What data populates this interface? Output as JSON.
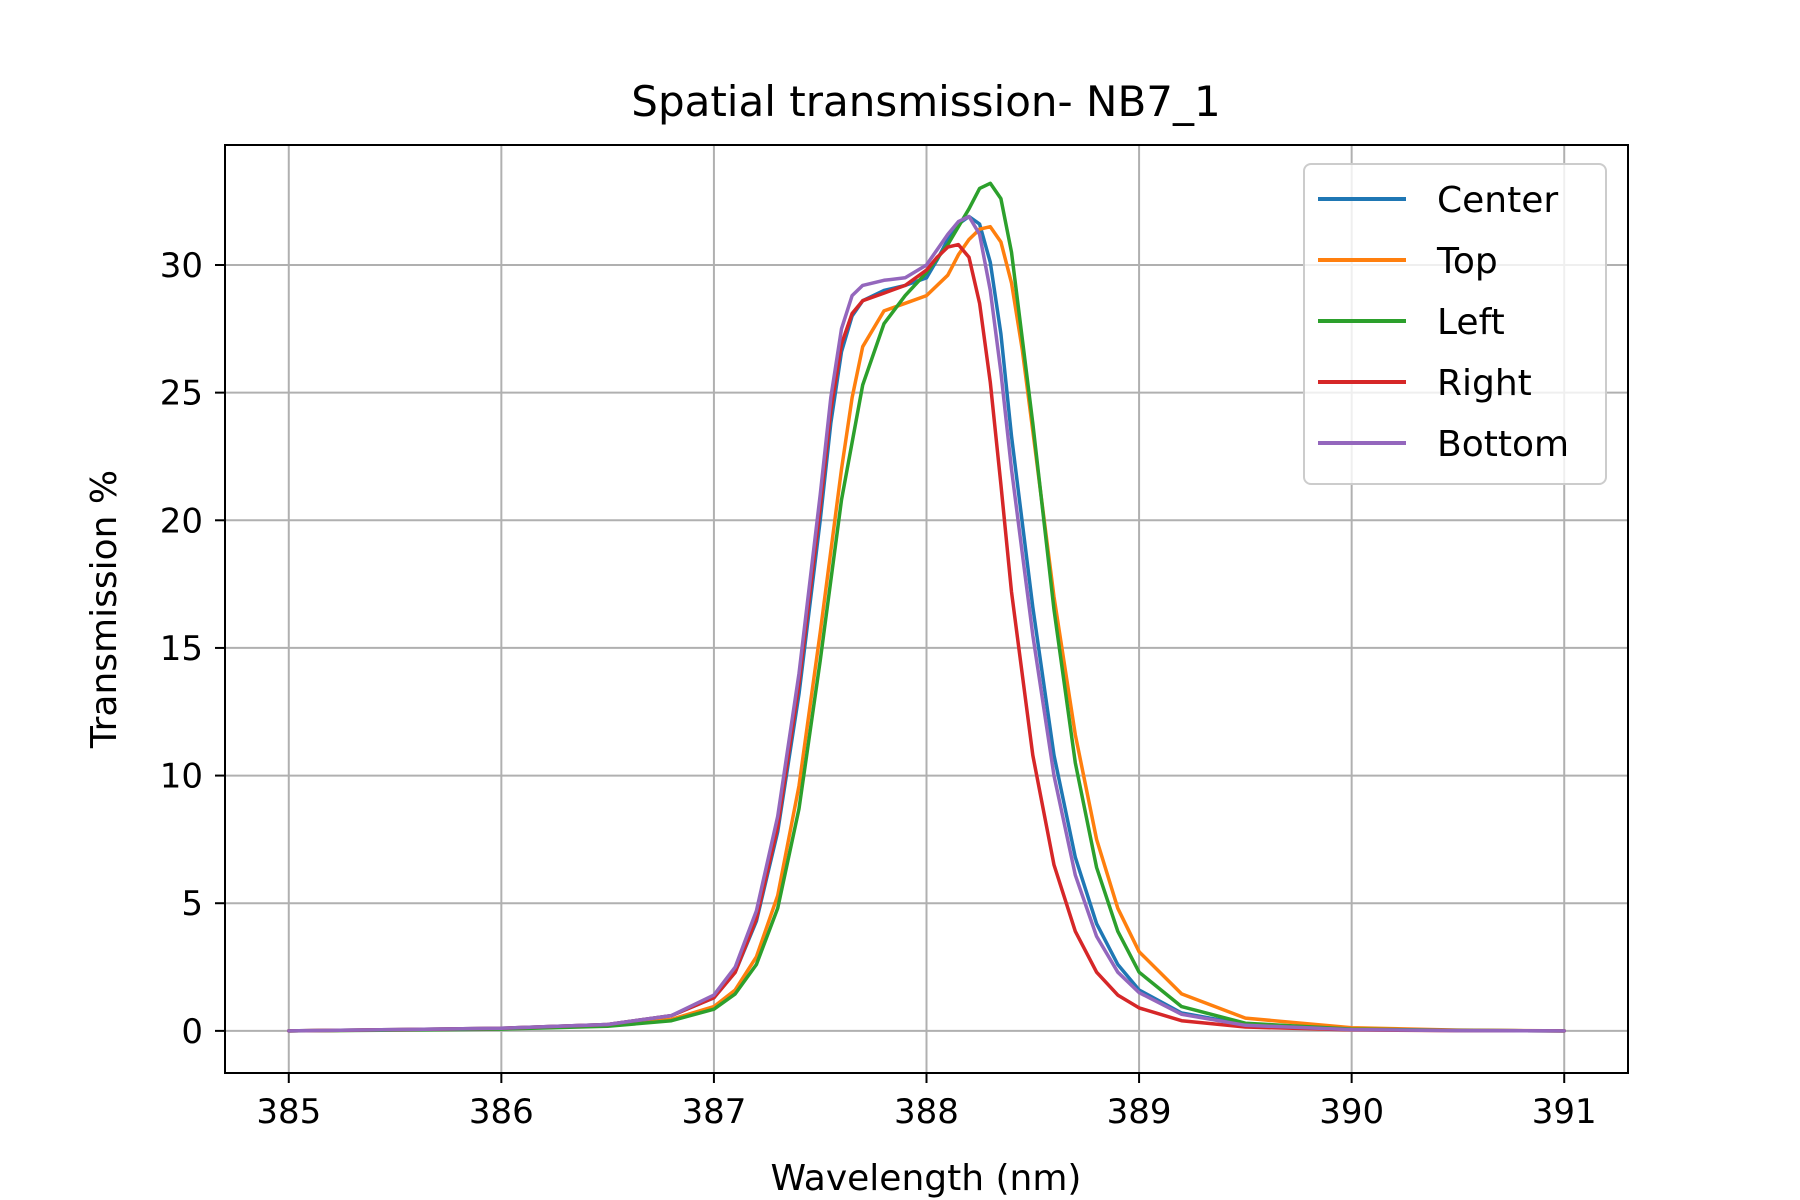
{
  "chart_data": {
    "type": "line",
    "title": "Spatial transmission- NB7_1",
    "xlabel": "Wavelength (nm)",
    "ylabel": "Transmission %",
    "xlim": [
      384.7,
      391.3
    ],
    "ylim": [
      -1.65,
      34.7
    ],
    "xticks": [
      385,
      386,
      387,
      388,
      389,
      390,
      391
    ],
    "yticks": [
      0,
      5,
      10,
      15,
      20,
      25,
      30
    ],
    "grid": true,
    "legend": "top-right",
    "series": [
      {
        "name": "Center",
        "color": "#1f77b4",
        "x": [
          385.0,
          385.5,
          386.0,
          386.5,
          386.8,
          387.0,
          387.1,
          387.2,
          387.3,
          387.4,
          387.5,
          387.55,
          387.6,
          387.65,
          387.7,
          387.8,
          387.9,
          388.0,
          388.05,
          388.1,
          388.15,
          388.2,
          388.25,
          388.3,
          388.35,
          388.4,
          388.5,
          388.6,
          388.7,
          388.8,
          388.9,
          389.0,
          389.2,
          389.5,
          390.0,
          390.5,
          391.0
        ],
        "y": [
          0.0,
          0.05,
          0.1,
          0.25,
          0.6,
          1.3,
          2.3,
          4.3,
          7.8,
          13.2,
          20.0,
          23.8,
          26.6,
          28.0,
          28.6,
          29.0,
          29.2,
          29.5,
          30.2,
          31.0,
          31.6,
          31.9,
          31.6,
          30.1,
          27.3,
          23.3,
          16.6,
          10.8,
          6.8,
          4.2,
          2.6,
          1.6,
          0.7,
          0.25,
          0.06,
          0.02,
          0.0
        ]
      },
      {
        "name": "Top",
        "color": "#ff7f0e",
        "x": [
          385.0,
          385.5,
          386.0,
          386.5,
          386.8,
          387.0,
          387.1,
          387.2,
          387.3,
          387.4,
          387.5,
          387.6,
          387.65,
          387.7,
          387.8,
          387.9,
          388.0,
          388.1,
          388.15,
          388.2,
          388.25,
          388.3,
          388.35,
          388.4,
          388.45,
          388.5,
          388.6,
          388.7,
          388.8,
          388.9,
          389.0,
          389.2,
          389.5,
          390.0,
          390.5,
          391.0
        ],
        "y": [
          0.0,
          0.04,
          0.08,
          0.2,
          0.45,
          0.95,
          1.6,
          2.9,
          5.3,
          9.6,
          15.6,
          22.0,
          24.8,
          26.8,
          28.2,
          28.5,
          28.8,
          29.6,
          30.4,
          31.0,
          31.4,
          31.5,
          30.9,
          29.3,
          26.7,
          23.5,
          17.0,
          11.6,
          7.5,
          4.8,
          3.1,
          1.45,
          0.5,
          0.12,
          0.03,
          0.0
        ]
      },
      {
        "name": "Left",
        "color": "#2ca02c",
        "x": [
          385.0,
          385.5,
          386.0,
          386.5,
          386.8,
          387.0,
          387.1,
          387.2,
          387.3,
          387.4,
          387.5,
          387.6,
          387.7,
          387.8,
          387.9,
          388.0,
          388.1,
          388.2,
          388.25,
          388.3,
          388.35,
          388.4,
          388.5,
          388.6,
          388.7,
          388.8,
          388.9,
          389.0,
          389.2,
          389.5,
          390.0,
          390.5,
          391.0
        ],
        "y": [
          0.0,
          0.03,
          0.07,
          0.18,
          0.4,
          0.85,
          1.45,
          2.6,
          4.8,
          8.7,
          14.5,
          20.8,
          25.3,
          27.7,
          28.8,
          29.7,
          30.8,
          32.2,
          33.0,
          33.2,
          32.6,
          30.5,
          23.8,
          16.5,
          10.5,
          6.4,
          3.9,
          2.3,
          0.95,
          0.3,
          0.07,
          0.02,
          0.0
        ]
      },
      {
        "name": "Right",
        "color": "#d62728",
        "x": [
          385.0,
          385.5,
          386.0,
          386.5,
          386.8,
          387.0,
          387.1,
          387.2,
          387.3,
          387.4,
          387.5,
          387.55,
          387.6,
          387.65,
          387.7,
          387.8,
          387.9,
          388.0,
          388.05,
          388.1,
          388.15,
          388.2,
          388.25,
          388.3,
          388.35,
          388.4,
          388.5,
          388.6,
          388.7,
          388.8,
          388.9,
          389.0,
          389.2,
          389.5,
          390.0,
          390.5,
          391.0
        ],
        "y": [
          0.0,
          0.05,
          0.1,
          0.25,
          0.6,
          1.3,
          2.3,
          4.4,
          8.0,
          13.6,
          20.5,
          24.3,
          26.9,
          28.1,
          28.6,
          28.9,
          29.2,
          29.8,
          30.3,
          30.7,
          30.8,
          30.3,
          28.5,
          25.4,
          21.4,
          17.2,
          10.8,
          6.5,
          3.9,
          2.3,
          1.4,
          0.9,
          0.4,
          0.15,
          0.04,
          0.01,
          0.0
        ]
      },
      {
        "name": "Bottom",
        "color": "#9467bd",
        "x": [
          385.0,
          385.5,
          386.0,
          386.5,
          386.8,
          387.0,
          387.1,
          387.2,
          387.3,
          387.4,
          387.5,
          387.55,
          387.6,
          387.65,
          387.7,
          387.8,
          387.9,
          388.0,
          388.05,
          388.1,
          388.15,
          388.2,
          388.25,
          388.3,
          388.35,
          388.4,
          388.5,
          388.6,
          388.7,
          388.8,
          388.9,
          389.0,
          389.2,
          389.5,
          390.0,
          390.5,
          391.0
        ],
        "y": [
          0.0,
          0.05,
          0.1,
          0.25,
          0.6,
          1.4,
          2.5,
          4.7,
          8.4,
          14.0,
          21.0,
          24.8,
          27.5,
          28.8,
          29.2,
          29.4,
          29.5,
          30.0,
          30.6,
          31.2,
          31.7,
          31.9,
          31.2,
          29.0,
          25.8,
          22.0,
          15.5,
          10.0,
          6.1,
          3.7,
          2.3,
          1.5,
          0.65,
          0.22,
          0.05,
          0.01,
          0.0
        ]
      }
    ]
  }
}
